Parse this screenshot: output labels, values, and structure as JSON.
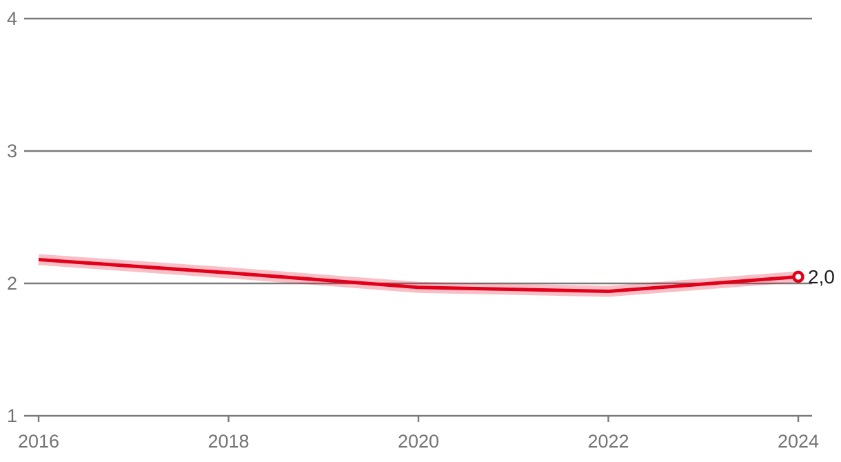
{
  "page": {
    "background_color": "#ffffff"
  },
  "chart_data": {
    "type": "line",
    "title": "",
    "x": [
      2016,
      2018,
      2020,
      2022,
      2024
    ],
    "series": [
      {
        "name": "main-series",
        "values": [
          2.18,
          2.08,
          1.97,
          1.94,
          2.05
        ],
        "color": "#e2001a"
      }
    ],
    "confidence_band": {
      "halfwidth": 0.04,
      "opacity": 0.25,
      "color": "#e2001a"
    },
    "end_point": {
      "x": 2024,
      "value": 2.05,
      "label": "2,0"
    },
    "x_ticks": [
      "2016",
      "2018",
      "2020",
      "2022",
      "2024"
    ],
    "y_ticks": [
      "1",
      "2",
      "3",
      "4"
    ],
    "y_tick_values": [
      1,
      2,
      3,
      4
    ],
    "x_tick_values": [
      2016,
      2018,
      2020,
      2022,
      2024
    ],
    "ylim": [
      1,
      4
    ],
    "xlim": [
      2016,
      2024
    ],
    "grid": "horizontal-only",
    "legend_position": "none",
    "colors": {
      "line": "#e2001a",
      "band_fill": "rgba(226,0,26,0.25)",
      "gridline": "#7a7a7a",
      "axis": "#7a7a7a",
      "tick_label_text": "#747474",
      "end_label_text": "#1f1f1f",
      "marker_fill": "#ffffff",
      "marker_stroke": "#e2001a"
    }
  }
}
